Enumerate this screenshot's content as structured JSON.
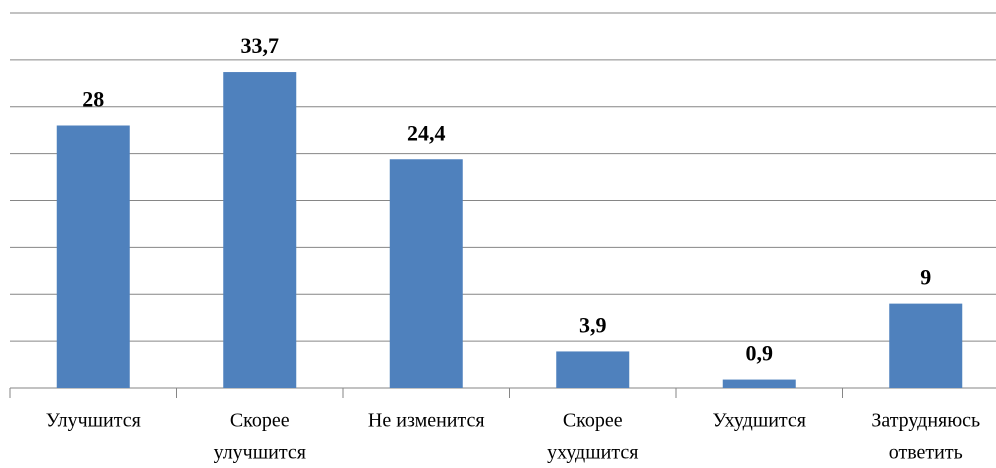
{
  "chart_data": {
    "type": "bar",
    "categories": [
      [
        "Улучшится"
      ],
      [
        "Скорее",
        "улучшится"
      ],
      [
        "Не изменится"
      ],
      [
        "Скорее",
        "ухудшится"
      ],
      [
        "Ухудшится"
      ],
      [
        "Затрудняюсь",
        "ответить"
      ]
    ],
    "values": [
      28,
      33.7,
      24.4,
      3.9,
      0.9,
      9
    ],
    "value_labels": [
      "28",
      "33,7",
      "24,4",
      "3,9",
      "0,9",
      "9"
    ],
    "color": "#4f81bd",
    "ylim": [
      0,
      40
    ],
    "yticks": [
      0,
      5,
      10,
      15,
      20,
      25,
      30,
      35,
      40
    ],
    "grid": true
  }
}
